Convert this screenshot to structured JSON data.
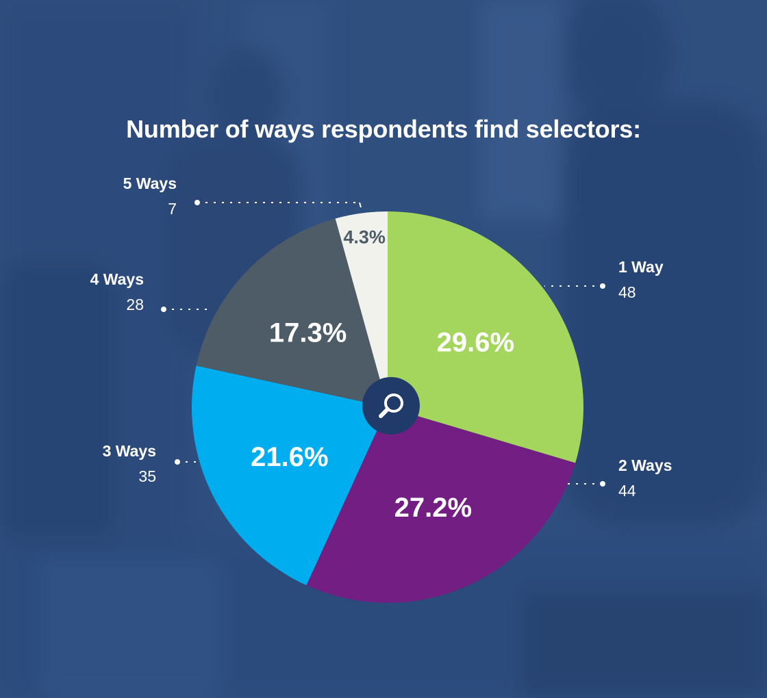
{
  "title": "Number of ways respondents find selectors:",
  "center_icon": "search-icon",
  "colors": {
    "background": "#2e4e82",
    "center_badge": "#203a6a"
  },
  "chart_data": {
    "type": "pie",
    "title": "Number of ways respondents find selectors:",
    "slices": [
      {
        "name": "1 Way",
        "count": "48",
        "value": 29.6,
        "label": "29.6%",
        "color": "#a4d65e",
        "text_color": "#ffffff"
      },
      {
        "name": "2 Ways",
        "count": "44",
        "value": 27.2,
        "label": "27.2%",
        "color": "#731e82",
        "text_color": "#ffffff"
      },
      {
        "name": "3 Ways",
        "count": "35",
        "value": 21.6,
        "label": "21.6%",
        "color": "#00aeef",
        "text_color": "#ffffff"
      },
      {
        "name": "4 Ways",
        "count": "28",
        "value": 17.3,
        "label": "17.3%",
        "color": "#4d5c66",
        "text_color": "#ffffff"
      },
      {
        "name": "5 Ways",
        "count": "7",
        "value": 4.3,
        "label": "4.3%",
        "color": "#f2f2ed",
        "text_color": "#4d5c66"
      }
    ],
    "start": "12 o'clock",
    "direction": "clockwise"
  }
}
